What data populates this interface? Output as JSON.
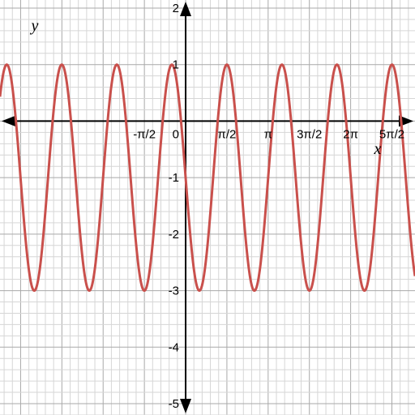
{
  "chart_data": {
    "type": "line",
    "title": "",
    "xlabel": "x",
    "ylabel": "y",
    "xlim": [
      -2.25,
      2.78
    ],
    "ylim": [
      -5,
      2
    ],
    "x_unit": "multiples of π",
    "grid": true,
    "x_ticks": [
      {
        "value": -0.5,
        "label": "-π/2"
      },
      {
        "value": 0.5,
        "label": "π/2"
      },
      {
        "value": 1.0,
        "label": "π"
      },
      {
        "value": 1.5,
        "label": "3π/2"
      },
      {
        "value": 2.0,
        "label": "2π"
      },
      {
        "value": 2.5,
        "label": "5π/2"
      }
    ],
    "y_ticks": [
      {
        "value": 2,
        "label": "2"
      },
      {
        "value": 1,
        "label": "1"
      },
      {
        "value": -1,
        "label": "-1"
      },
      {
        "value": -2,
        "label": "-2"
      },
      {
        "value": -3,
        "label": "-3"
      },
      {
        "value": -4,
        "label": "-4"
      },
      {
        "value": -5,
        "label": "-5"
      }
    ],
    "origin_label": "0",
    "series": [
      {
        "color": "#c9504c",
        "amplitude": 2,
        "midline": -1,
        "period": 0.667,
        "max_at_x": -0.167,
        "maxima_x": [
          -0.167,
          0.5,
          1.167,
          1.833,
          2.5
        ],
        "minima_x": [
          -0.5,
          0.167,
          0.833,
          1.5,
          2.167
        ],
        "max_y": 1,
        "min_y": -3
      }
    ]
  },
  "colors": {
    "grid_minor": "#d6d6d6",
    "grid_major": "#a9a9a9",
    "axis": "#000000",
    "curve": "#c9504c"
  }
}
